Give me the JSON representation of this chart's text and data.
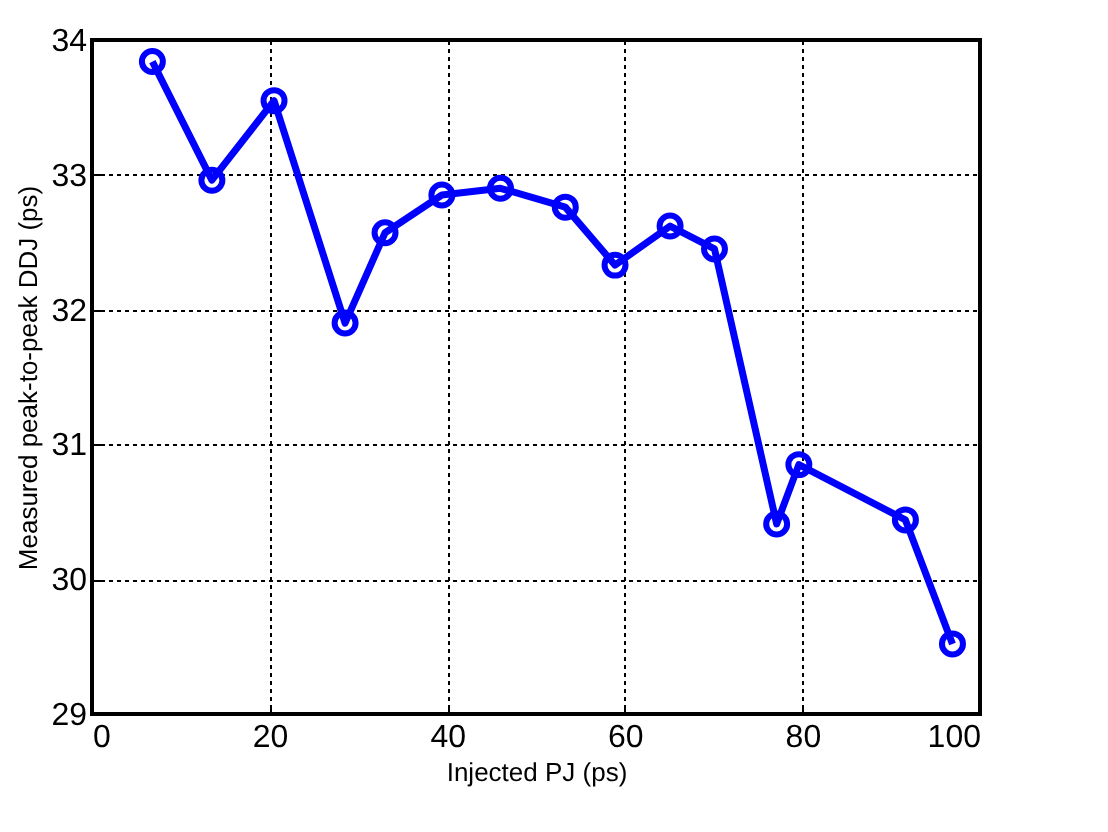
{
  "chart_data": {
    "type": "line",
    "xlabel": "Injected PJ (ps)",
    "ylabel": "Measured peak-to-peak DDJ (ps)",
    "x": [
      6.8,
      13.5,
      20.5,
      28.5,
      33,
      39.4,
      46,
      53.3,
      58.9,
      65.1,
      70.1,
      77.1,
      79.6,
      91.6,
      96.9
    ],
    "series": [
      {
        "color": "#0000ff",
        "values": [
          33.84,
          32.96,
          33.55,
          31.9,
          32.57,
          32.85,
          32.9,
          32.76,
          32.33,
          32.62,
          32.45,
          30.41,
          30.85,
          30.44,
          29.52
        ]
      }
    ],
    "xlim": [
      0,
      100
    ],
    "xticks": [
      0,
      20,
      40,
      60,
      80,
      100
    ],
    "ylim": [
      29,
      34
    ],
    "yticks": [
      29,
      30,
      31,
      32,
      33,
      34
    ],
    "grid": true,
    "marker": "circle",
    "line_style": "solid"
  }
}
